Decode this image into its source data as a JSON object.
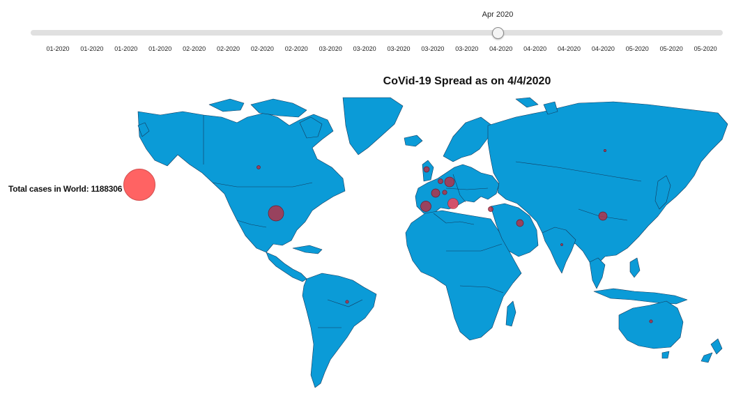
{
  "slider": {
    "current_label": "Apr 2020",
    "ticks": [
      "01-2020",
      "01-2020",
      "01-2020",
      "01-2020",
      "02-2020",
      "02-2020",
      "02-2020",
      "02-2020",
      "03-2020",
      "03-2020",
      "03-2020",
      "03-2020",
      "03-2020",
      "04-2020",
      "04-2020",
      "04-2020",
      "04-2020",
      "05-2020",
      "05-2020",
      "05-2020"
    ],
    "selected_fraction": 0.675
  },
  "map": {
    "title": "CoVid-19 Spread as on 4/4/2020",
    "land_color": "#0b9bd7",
    "border_color": "#14385a",
    "bubble_color": "#b23349",
    "world_bubble_color": "#ff6363"
  },
  "world": {
    "total_label": "Total cases in World: 1188306"
  }
}
